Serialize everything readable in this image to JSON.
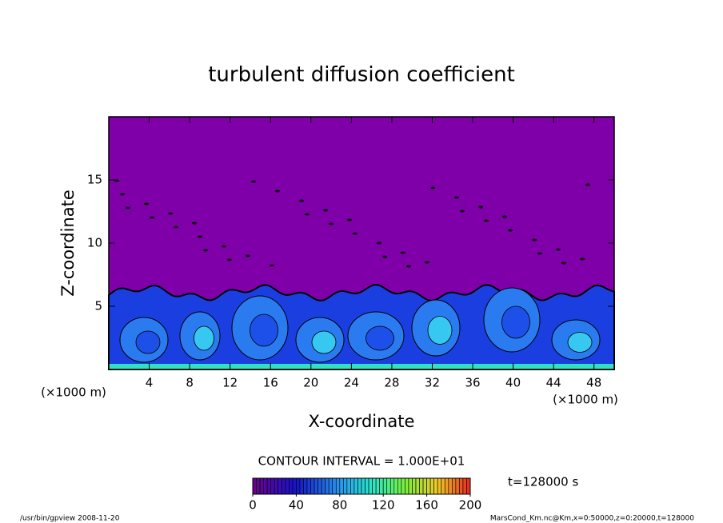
{
  "chart_data": {
    "type": "contour",
    "title": "turbulent diffusion coefficient",
    "xlabel": "X-coordinate",
    "ylabel": "Z-coordinate",
    "xunit": "(×1000 m)",
    "yunit": "(×1000 m)",
    "xlim": [
      0,
      50
    ],
    "xticks": [
      4,
      8,
      12,
      16,
      20,
      24,
      28,
      32,
      36,
      40,
      44,
      48
    ],
    "ylim": [
      0,
      20
    ],
    "yticks": [
      5,
      10,
      15
    ],
    "contour_interval": "CONTOUR INTERVAL = 1.000E+01",
    "colorbar": {
      "lim": [
        0,
        200
      ],
      "ticks": [
        0,
        40,
        80,
        120,
        160,
        200
      ]
    },
    "time": "t=128000 s"
  },
  "footer_left": "/usr/bin/gpview  2008-11-20",
  "footer_right": "MarsCond_Km.nc@Km,x=0:50000,z=0:20000,t=128000"
}
